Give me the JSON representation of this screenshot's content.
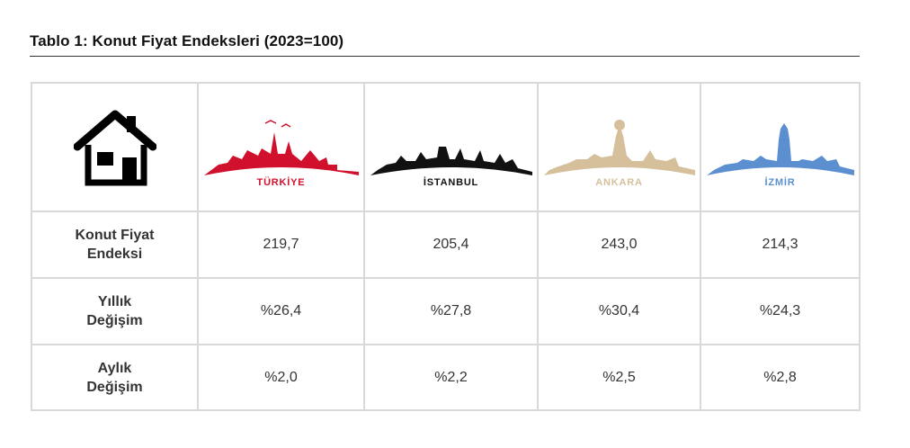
{
  "title": "Tablo 1: Konut Fiyat Endeksleri (2023=100)",
  "header": {
    "icon": "house-icon",
    "cities": [
      {
        "name": "TÜRKİYE",
        "color": "#d0102c"
      },
      {
        "name": "İSTANBUL",
        "color": "#111111"
      },
      {
        "name": "ANKARA",
        "color": "#d6c09c"
      },
      {
        "name": "İZMİR",
        "color": "#5b8fcf"
      }
    ]
  },
  "rows": [
    {
      "label_line1": "Konut Fiyat",
      "label_line2": "Endeksi",
      "values": [
        "219,7",
        "205,4",
        "243,0",
        "214,3"
      ]
    },
    {
      "label_line1": "Yıllık",
      "label_line2": "Değişim",
      "values": [
        "%26,4",
        "%27,8",
        "%30,4",
        "%24,3"
      ]
    },
    {
      "label_line1": "Aylık",
      "label_line2": "Değişim",
      "values": [
        "%2,0",
        "%2,2",
        "%2,5",
        "%2,8"
      ]
    }
  ]
}
